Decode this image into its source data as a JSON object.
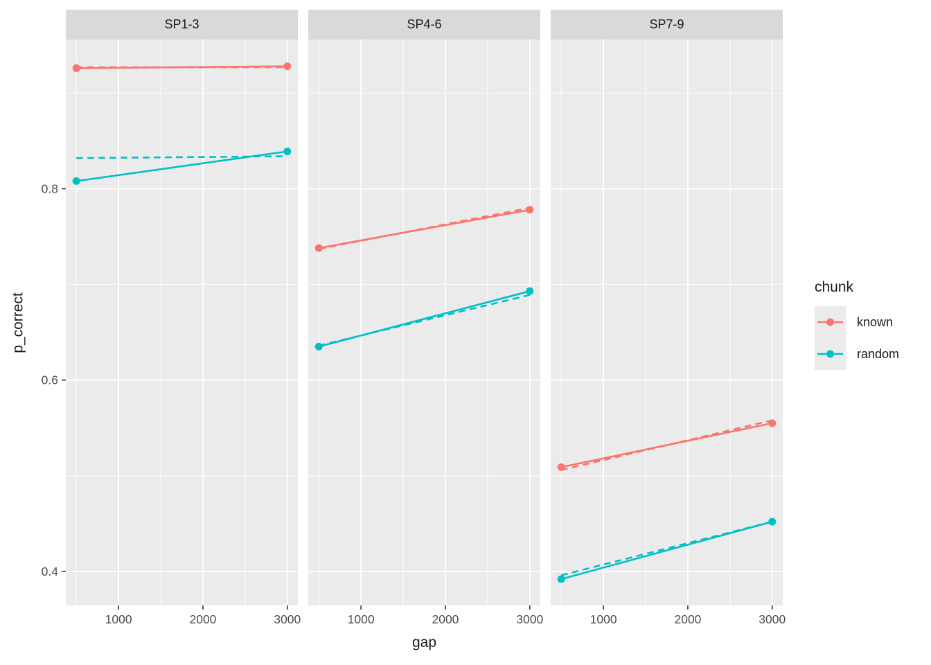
{
  "chart_data": {
    "type": "line",
    "title": "",
    "xlabel": "gap",
    "ylabel": "p_correct",
    "xlim": [
      375,
      3125
    ],
    "ylim": [
      0.3645,
      0.956
    ],
    "x_ticks": [
      1000,
      2000,
      3000
    ],
    "x_tick_labels": [
      "1000",
      "2000",
      "3000"
    ],
    "x_minor_ticks": [
      500,
      1500,
      2500
    ],
    "y_ticks": [
      0.4,
      0.6,
      0.8
    ],
    "y_tick_labels": [
      "0.4",
      "0.6",
      "0.8"
    ],
    "y_minor_ticks": [
      0.5,
      0.7,
      0.9
    ],
    "grid": true,
    "legend": {
      "title": "chunk",
      "position": "right",
      "entries": [
        {
          "label": "known",
          "color": "#F8766D"
        },
        {
          "label": "random",
          "color": "#00BFC4"
        }
      ]
    },
    "facets": [
      {
        "label": "SP1-3",
        "series": [
          {
            "chunk": "known",
            "style": "solid",
            "x": [
              500,
              3000
            ],
            "y": [
              0.926,
              0.928
            ]
          },
          {
            "chunk": "known",
            "style": "dashed",
            "x": [
              500,
              3000
            ],
            "y": [
              0.927,
              0.927
            ]
          },
          {
            "chunk": "random",
            "style": "solid",
            "x": [
              500,
              3000
            ],
            "y": [
              0.808,
              0.839
            ]
          },
          {
            "chunk": "random",
            "style": "dashed",
            "x": [
              500,
              3000
            ],
            "y": [
              0.832,
              0.834
            ]
          }
        ]
      },
      {
        "label": "SP4-6",
        "series": [
          {
            "chunk": "known",
            "style": "solid",
            "x": [
              500,
              3000
            ],
            "y": [
              0.738,
              0.778
            ]
          },
          {
            "chunk": "known",
            "style": "dashed",
            "x": [
              500,
              3000
            ],
            "y": [
              0.737,
              0.78
            ]
          },
          {
            "chunk": "random",
            "style": "solid",
            "x": [
              500,
              3000
            ],
            "y": [
              0.635,
              0.693
            ]
          },
          {
            "chunk": "random",
            "style": "dashed",
            "x": [
              500,
              3000
            ],
            "y": [
              0.636,
              0.689
            ]
          }
        ]
      },
      {
        "label": "SP7-9",
        "series": [
          {
            "chunk": "known",
            "style": "solid",
            "x": [
              500,
              3000
            ],
            "y": [
              0.509,
              0.555
            ]
          },
          {
            "chunk": "known",
            "style": "dashed",
            "x": [
              500,
              3000
            ],
            "y": [
              0.506,
              0.558
            ]
          },
          {
            "chunk": "random",
            "style": "solid",
            "x": [
              500,
              3000
            ],
            "y": [
              0.392,
              0.452
            ]
          },
          {
            "chunk": "random",
            "style": "dashed",
            "x": [
              500,
              3000
            ],
            "y": [
              0.396,
              0.452
            ]
          }
        ]
      }
    ],
    "colors": {
      "known": "#F8766D",
      "random": "#00BFC4",
      "panel_bg": "#EBEBEB",
      "strip_bg": "#D9D9D9",
      "grid": "#FFFFFF",
      "tick": "#333333",
      "tick_label": "#4D4D4D",
      "text": "#1A1A1A"
    }
  }
}
